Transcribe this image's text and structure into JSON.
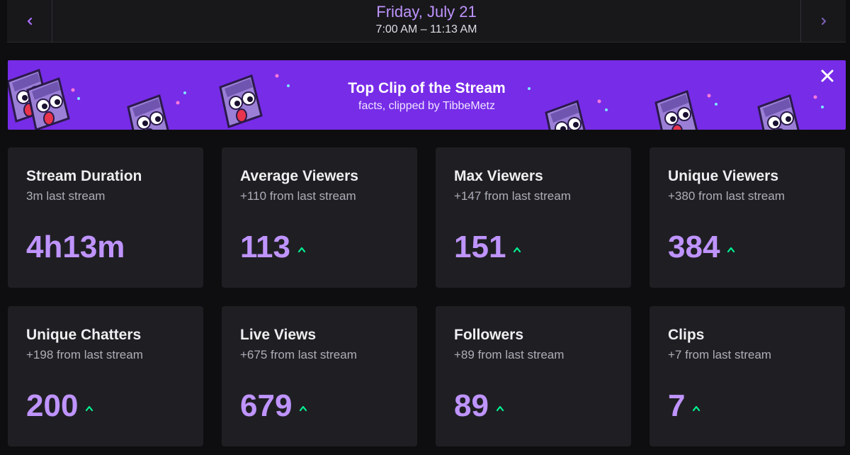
{
  "date_nav": {
    "title": "Friday, July 21",
    "time_range": "7:00 AM – 11:13 AM",
    "prev_icon": "chevron-left-icon",
    "next_icon": "chevron-right-icon"
  },
  "banner": {
    "title": "Top Clip of the Stream",
    "subtitle": "facts, clipped by TibbeMetz",
    "close_icon": "close-icon",
    "background_color": "#772ce8"
  },
  "stats": [
    {
      "title": "Stream Duration",
      "subtitle": "3m last stream",
      "value": "4h13m",
      "trend": ""
    },
    {
      "title": "Average Viewers",
      "subtitle": "+110 from last stream",
      "value": "113",
      "trend": "up"
    },
    {
      "title": "Max Viewers",
      "subtitle": "+147 from last stream",
      "value": "151",
      "trend": "up"
    },
    {
      "title": "Unique Viewers",
      "subtitle": "+380 from last stream",
      "value": "384",
      "trend": "up"
    },
    {
      "title": "Unique Chatters",
      "subtitle": "+198 from last stream",
      "value": "200",
      "trend": "up"
    },
    {
      "title": "Live Views",
      "subtitle": "+675 from last stream",
      "value": "679",
      "trend": "up"
    },
    {
      "title": "Followers",
      "subtitle": "+89 from last stream",
      "value": "89",
      "trend": "up"
    },
    {
      "title": "Clips",
      "subtitle": "+7 from last stream",
      "value": "7",
      "trend": "up"
    }
  ],
  "colors": {
    "accent": "#bf94ff",
    "trend_up": "#00f593",
    "card_bg": "#1f1f23"
  }
}
